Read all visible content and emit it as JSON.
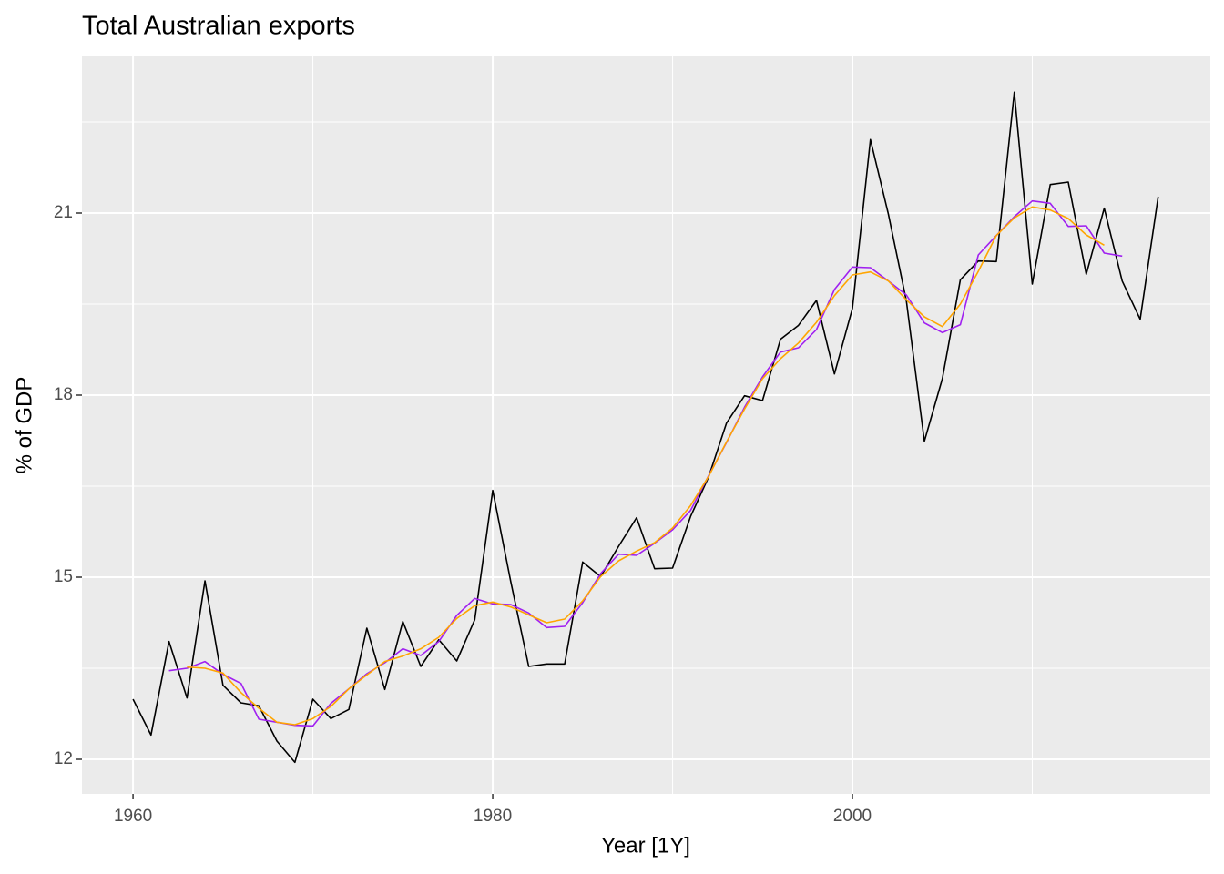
{
  "chart_data": {
    "type": "line",
    "title": "Total Australian exports",
    "x_label": "Year [1Y]",
    "y_label": "% of GDP",
    "x": [
      1960,
      1961,
      1962,
      1963,
      1964,
      1965,
      1966,
      1967,
      1968,
      1969,
      1970,
      1971,
      1972,
      1973,
      1974,
      1975,
      1976,
      1977,
      1978,
      1979,
      1980,
      1981,
      1982,
      1983,
      1984,
      1985,
      1986,
      1987,
      1988,
      1989,
      1990,
      1991,
      1992,
      1993,
      1994,
      1995,
      1996,
      1997,
      1998,
      1999,
      2000,
      2001,
      2002,
      2003,
      2004,
      2005,
      2006,
      2007,
      2008,
      2009,
      2010,
      2011,
      2012,
      2013,
      2014,
      2015,
      2016,
      2017
    ],
    "series": [
      {
        "color": "#000000",
        "values": [
          12.99,
          12.4,
          13.94,
          13.01,
          14.94,
          13.22,
          12.93,
          12.88,
          12.3,
          11.95,
          12.99,
          12.67,
          12.82,
          14.16,
          13.15,
          14.27,
          13.53,
          13.97,
          13.62,
          14.3,
          16.43,
          14.93,
          13.53,
          13.57,
          13.57,
          15.25,
          15.01,
          15.51,
          15.98,
          15.14,
          15.15,
          16.0,
          16.65,
          17.54,
          17.99,
          17.91,
          18.92,
          19.15,
          19.56,
          18.35,
          19.43,
          22.21,
          20.98,
          19.55,
          17.24,
          18.27,
          19.9,
          20.21,
          20.2,
          22.99,
          19.83,
          21.47,
          21.51,
          19.99,
          21.08,
          19.88,
          19.25,
          21.27
        ]
      },
      {
        "color": "#a020f0",
        "values": [
          null,
          null,
          13.46,
          13.5,
          13.61,
          13.4,
          13.25,
          12.66,
          12.61,
          12.56,
          12.55,
          12.92,
          13.16,
          13.41,
          13.59,
          13.82,
          13.71,
          13.94,
          14.37,
          14.65,
          14.56,
          14.55,
          14.41,
          14.17,
          14.19,
          14.58,
          15.06,
          15.38,
          15.36,
          15.56,
          15.78,
          16.1,
          16.67,
          17.22,
          17.8,
          18.3,
          18.71,
          18.78,
          19.08,
          19.74,
          20.11,
          20.1,
          19.88,
          19.65,
          19.19,
          19.03,
          19.16,
          20.31,
          20.63,
          20.94,
          21.2,
          21.16,
          20.78,
          20.79,
          20.34,
          20.29,
          null,
          null
        ]
      },
      {
        "color": "#ffa500",
        "values": [
          null,
          null,
          null,
          13.52,
          13.5,
          13.42,
          13.1,
          12.84,
          12.61,
          12.57,
          12.67,
          12.87,
          13.16,
          13.39,
          13.61,
          13.7,
          13.82,
          14.01,
          14.32,
          14.53,
          14.59,
          14.51,
          14.38,
          14.25,
          14.31,
          14.61,
          15.01,
          15.27,
          15.43,
          15.57,
          15.81,
          16.18,
          16.66,
          17.23,
          17.77,
          18.27,
          18.6,
          18.86,
          19.2,
          19.64,
          19.98,
          20.03,
          19.88,
          19.57,
          19.29,
          19.13,
          19.5,
          20.04,
          20.63,
          20.92,
          21.1,
          21.05,
          20.91,
          20.64,
          20.47,
          null,
          null,
          null
        ]
      }
    ],
    "xlim": [
      1957.16,
      2019.9
    ],
    "ylim": [
      11.43,
      23.58
    ],
    "xticks": [
      1960,
      1980,
      2000
    ],
    "yticks": [
      12,
      15,
      18,
      21
    ],
    "x_minor_ticks": [
      1970,
      1990,
      2010
    ],
    "y_minor_ticks": [
      13.5,
      16.5,
      19.5,
      22.5
    ],
    "grid": true,
    "background": "#ebebeb"
  }
}
